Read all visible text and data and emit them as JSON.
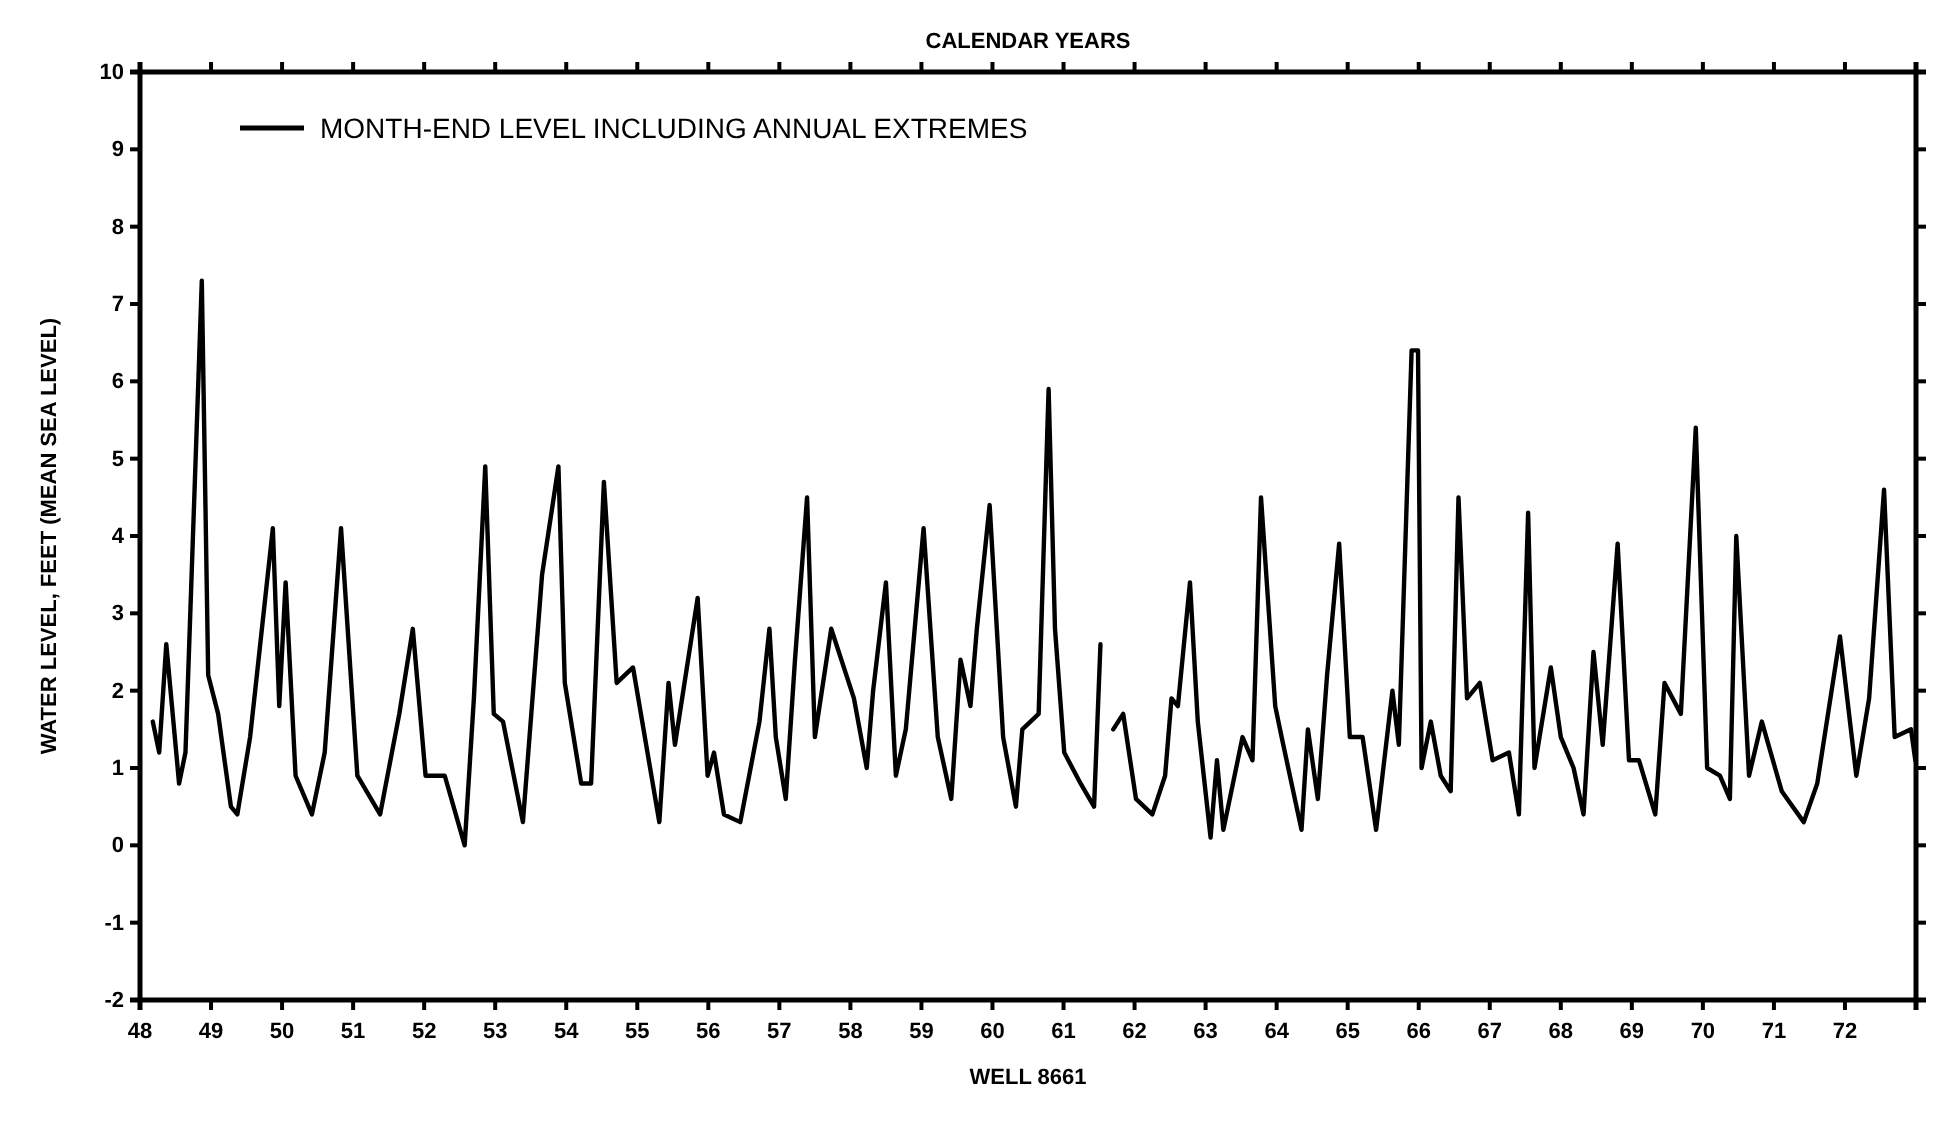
{
  "chart_data": {
    "type": "line",
    "title": "CALENDAR YEARS",
    "xlabel": "WELL 8661",
    "ylabel": "WATER LEVEL, FEET (MEAN SEA LEVEL)",
    "xlim": [
      48,
      73
    ],
    "ylim": [
      -2,
      10
    ],
    "yticks": [
      -2,
      -1,
      0,
      1,
      2,
      3,
      4,
      5,
      6,
      7,
      8,
      9,
      10
    ],
    "xticks": [
      48,
      49,
      50,
      51,
      52,
      53,
      54,
      55,
      56,
      57,
      58,
      59,
      60,
      61,
      62,
      63,
      64,
      65,
      66,
      67,
      68,
      69,
      70,
      71,
      72,
      {
        "value": 73,
        "label": null
      }
    ],
    "grid": false,
    "legend": "top left",
    "marker": "none",
    "line_style": "solid",
    "series": [
      {
        "name": "MONTH-END LEVEL INCLUDING ANNUAL EXTREMES",
        "color": "#000000",
        "x": [
          48.18,
          48.27,
          48.37,
          48.55,
          48.64,
          48.87,
          48.96,
          49.1,
          49.28,
          49.37,
          49.55,
          49.87,
          49.96,
          50.05,
          50.19,
          50.42,
          50.6,
          50.83,
          51.06,
          51.38,
          51.65,
          51.84,
          52.02,
          52.29,
          52.57,
          52.7,
          52.86,
          52.98,
          53.11,
          53.39,
          53.66,
          53.89,
          53.98,
          54.21,
          54.35,
          54.53,
          54.71,
          54.94,
          55.31,
          55.44,
          55.53,
          55.85,
          55.99,
          56.08,
          56.22,
          56.45,
          56.72,
          56.86,
          56.95,
          57.09,
          57.22,
          57.39,
          57.5,
          57.73,
          58.05,
          58.23,
          58.32,
          58.5,
          58.64,
          58.78,
          59.03,
          59.23,
          59.42,
          59.55,
          59.69,
          59.78,
          59.96,
          60.15,
          60.33,
          60.42,
          60.65,
          60.79,
          60.88,
          61.01,
          61.24,
          61.43,
          61.52,
          61.6,
          61.7,
          61.84,
          62.02,
          62.25,
          62.43,
          62.52,
          62.61,
          62.78,
          62.89,
          63.07,
          63.16,
          63.25,
          63.52,
          63.66,
          63.78,
          63.98,
          64.07,
          64.35,
          64.44,
          64.58,
          64.71,
          64.88,
          65.03,
          65.21,
          65.4,
          65.63,
          65.72,
          65.9,
          65.99,
          66.04,
          66.17,
          66.31,
          66.45,
          66.56,
          66.68,
          66.86,
          67.04,
          67.27,
          67.41,
          67.54,
          67.63,
          67.86,
          68.0,
          68.18,
          68.32,
          68.46,
          68.59,
          68.8,
          68.96,
          69.1,
          69.33,
          69.46,
          69.69,
          69.9,
          70.06,
          70.24,
          70.38,
          70.47,
          70.65,
          70.83,
          71.11,
          71.42,
          71.61,
          71.93,
          72.16,
          72.34,
          72.55,
          72.7,
          72.93,
          72.99
        ],
        "values": [
          1.6,
          1.2,
          2.6,
          0.8,
          1.2,
          7.3,
          2.2,
          1.7,
          0.5,
          0.4,
          1.4,
          4.1,
          1.8,
          3.4,
          0.9,
          0.4,
          1.2,
          4.1,
          0.9,
          0.4,
          1.7,
          2.8,
          0.9,
          0.9,
          0.0,
          1.9,
          4.9,
          1.7,
          1.6,
          0.3,
          3.5,
          4.9,
          2.1,
          0.8,
          0.8,
          4.7,
          2.1,
          2.3,
          0.3,
          2.1,
          1.3,
          3.2,
          0.9,
          1.2,
          0.4,
          0.3,
          1.6,
          2.8,
          1.4,
          0.6,
          2.4,
          4.5,
          1.4,
          2.8,
          1.9,
          1.0,
          2.0,
          3.4,
          0.9,
          1.5,
          4.1,
          1.4,
          0.6,
          2.4,
          1.8,
          2.8,
          4.4,
          1.4,
          0.5,
          1.5,
          1.7,
          5.9,
          2.8,
          1.2,
          0.8,
          0.5,
          2.6,
          null,
          1.5,
          1.7,
          0.6,
          0.4,
          0.9,
          1.9,
          1.8,
          3.4,
          1.6,
          0.1,
          1.1,
          0.2,
          1.4,
          1.1,
          4.5,
          1.8,
          1.4,
          0.2,
          1.5,
          0.6,
          2.2,
          3.9,
          1.4,
          1.4,
          0.2,
          2.0,
          1.3,
          6.4,
          6.4,
          1.0,
          1.6,
          0.9,
          0.7,
          4.5,
          1.9,
          2.1,
          1.1,
          1.2,
          0.4,
          4.3,
          1.0,
          2.3,
          1.4,
          1.0,
          0.4,
          2.5,
          1.3,
          3.9,
          1.1,
          1.1,
          0.4,
          2.1,
          1.7,
          5.4,
          1.0,
          0.9,
          0.6,
          4.0,
          0.9,
          1.6,
          0.7,
          0.3,
          0.8,
          2.7,
          0.9,
          1.9,
          4.6,
          1.4,
          1.5,
          1.1
        ]
      }
    ]
  }
}
